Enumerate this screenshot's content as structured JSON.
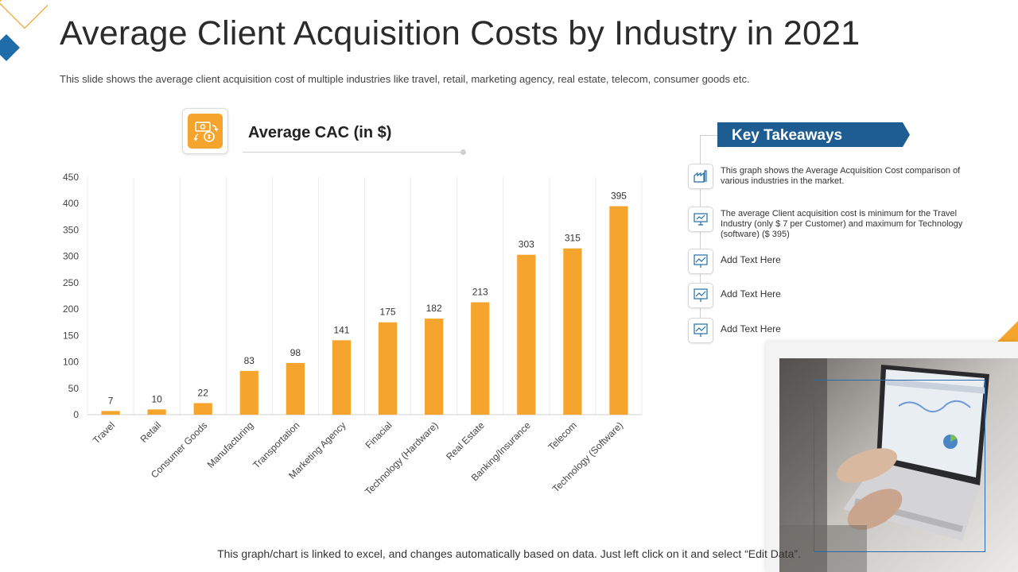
{
  "title": "Average Client Acquisition Costs by Industry in 2021",
  "subtitle": "This slide shows the average client acquisition cost of multiple industries like travel, retail, marketing agency, real estate, telecom, consumer goods etc.",
  "cac_heading": "Average CAC (in $)",
  "key_takeaways": {
    "title": "Key Takeaways",
    "items": [
      {
        "text": "This graph shows the Average Acquisition Cost comparison of various industries in the market.",
        "icon": "factory-icon"
      },
      {
        "text": "The average Client acquisition cost is minimum for the Travel Industry (only $ 7 per Customer) and maximum for Technology (software) ($ 395)",
        "icon": "presentation-icon"
      },
      {
        "text": "Add Text Here",
        "icon": "chart-board-icon"
      },
      {
        "text": "Add Text Here",
        "icon": "chart-board-icon"
      },
      {
        "text": "Add Text Here",
        "icon": "chart-board-icon"
      }
    ]
  },
  "footnote": "This graph/chart is linked to excel, and changes automatically based on data.  Just left click on it and select “Edit Data”.",
  "colors": {
    "bar": "#f5a52d",
    "banner": "#1e5d91",
    "accent_blue": "#1f6da8",
    "accent_orange": "#f5a52d"
  },
  "chart_data": {
    "type": "bar",
    "title": "Average CAC (in $)",
    "categories": [
      "Travel",
      "Retail",
      "Consumer Goods",
      "Manufacturing",
      "Transportation",
      "Marketing Agency",
      "Finacial",
      "Technology (Hardware)",
      "Real Estate",
      "Banking/Insurance",
      "Telecom",
      "Technology (Software)"
    ],
    "values": [
      7,
      10,
      22,
      83,
      98,
      141,
      175,
      182,
      213,
      303,
      315,
      395
    ],
    "ylim": [
      0,
      450
    ],
    "yticks": [
      0,
      50,
      100,
      150,
      200,
      250,
      300,
      350,
      400,
      450
    ],
    "xlabel": "",
    "ylabel": "",
    "grid": "vertical",
    "data_labels": true
  }
}
